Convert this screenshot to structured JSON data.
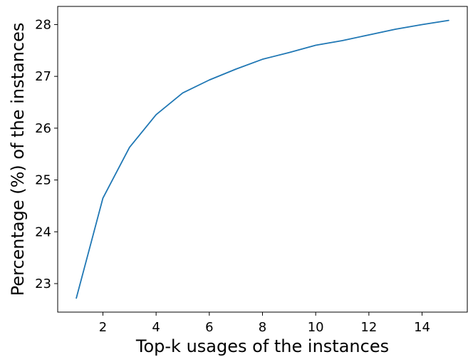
{
  "chart_data": {
    "type": "line",
    "title": "",
    "xlabel": "Top-k usages of the instances",
    "ylabel": "Percentage (%) of the instances",
    "xlim": [
      0.3,
      15.7
    ],
    "ylim": [
      22.45,
      28.35
    ],
    "xticks": [
      2,
      4,
      6,
      8,
      10,
      12,
      14
    ],
    "yticks": [
      23,
      24,
      25,
      26,
      27,
      28
    ],
    "grid": false,
    "series": [
      {
        "color": "#1f77b4",
        "x": [
          1,
          2,
          3,
          4,
          5,
          6,
          7,
          8,
          9,
          10,
          11,
          12,
          13,
          14,
          15
        ],
        "y": [
          22.72,
          24.65,
          25.63,
          26.26,
          26.68,
          26.93,
          27.14,
          27.33,
          27.46,
          27.6,
          27.69,
          27.8,
          27.91,
          28.0,
          28.08
        ]
      }
    ]
  }
}
